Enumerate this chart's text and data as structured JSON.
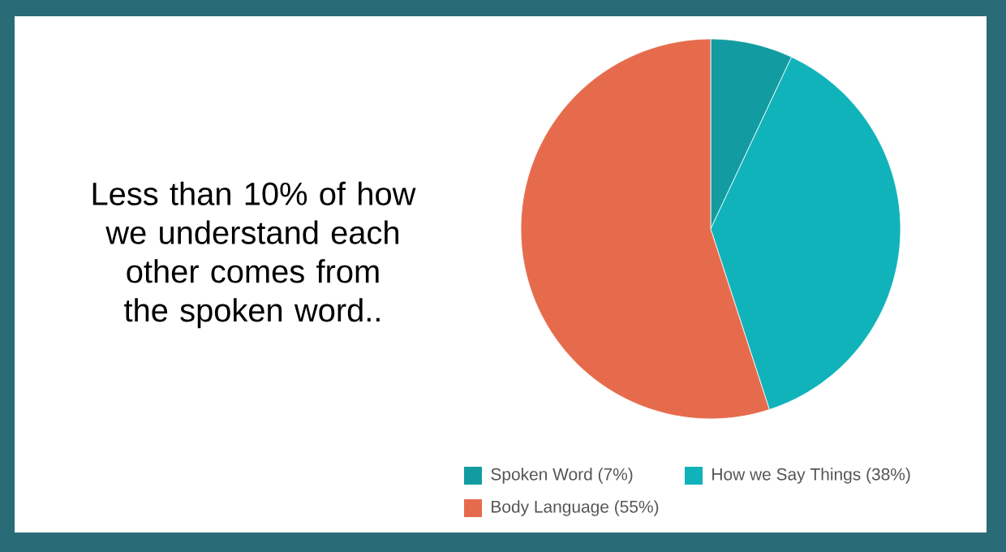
{
  "chart_data": {
    "type": "pie",
    "title": "Less than 10% of how we understand each other comes from the spoken word..",
    "categories": [
      "Spoken Word (7%)",
      "How we Say Things (38%)",
      "Body Language (55%)"
    ],
    "values": [
      7,
      38,
      55
    ],
    "colors": [
      "#129ca1",
      "#11b3bb",
      "#e66b4d"
    ],
    "legend": "bottom"
  }
}
